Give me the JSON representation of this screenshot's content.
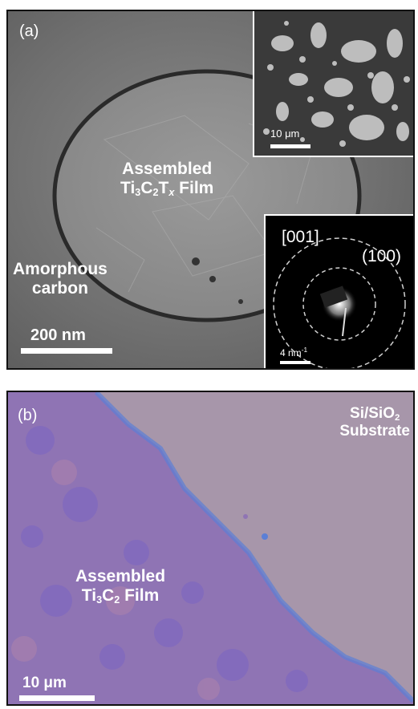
{
  "panel_a": {
    "label": "(a)",
    "film_label_line1": "Assembled",
    "film_label_line2_base": "Ti",
    "film_label_line2_sub1": "3",
    "film_label_line2_mid": "C",
    "film_label_line2_sub2": "2",
    "film_label_line2_t": "T",
    "film_label_line2_x": "x",
    "film_label_line2_end": " Film",
    "amorphous_line1": "Amorphous",
    "amorphous_line2": "carbon",
    "scalebar_label": "200 nm",
    "inset_top": {
      "scalebar_label": "10 μm"
    },
    "inset_diffraction": {
      "zone_axis": "[001]",
      "reflection": "(100)",
      "scalebar_label_base": "4 nm",
      "scalebar_label_sup": "-1"
    }
  },
  "panel_b": {
    "label": "(b)",
    "substrate_line1_base": "Si/SiO",
    "substrate_line1_sub": "2",
    "substrate_line2": "Substrate",
    "film_label_line1": "Assembled",
    "film_label_line2_base": "Ti",
    "film_label_line2_sub1": "3",
    "film_label_line2_mid": "C",
    "film_label_line2_sub2": "2",
    "film_label_line2_end": " Film",
    "scalebar_label": "10 μm"
  }
}
